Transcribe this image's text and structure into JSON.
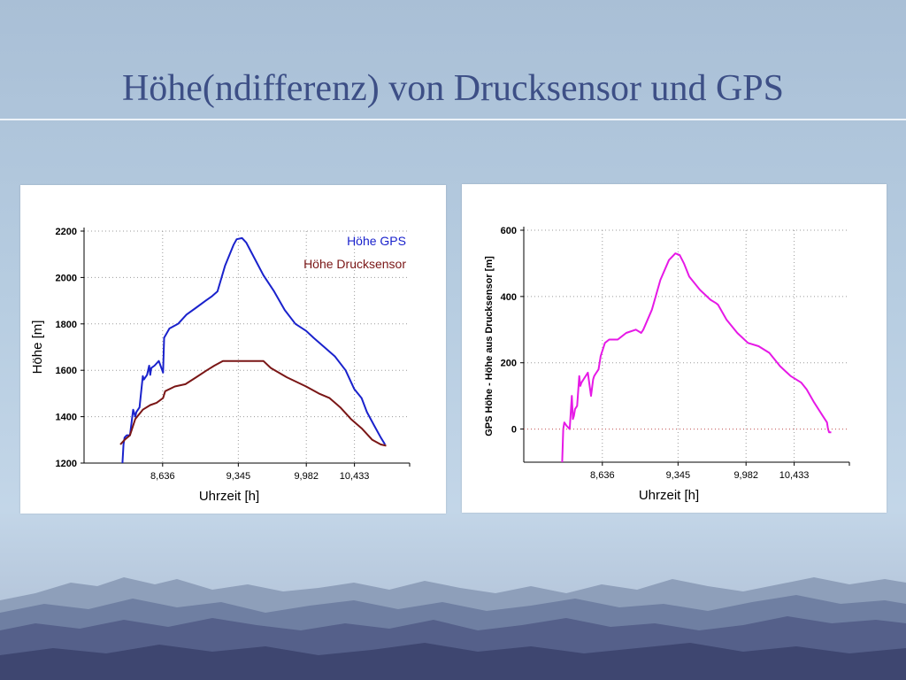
{
  "slide": {
    "title": "Höhe(ndifferenz) von Drucksensor und GPS"
  },
  "colors": {
    "title": "#3d4f86",
    "gps": "#1a22cc",
    "drucksensor": "#7a1616",
    "differenz": "#e619e6"
  },
  "chart_data": [
    {
      "type": "line",
      "xlabel": "Uhrzeit [h]",
      "ylabel": "Höhe [m]",
      "xlim": [
        7.9,
        10.95
      ],
      "ylim": [
        1200,
        2200
      ],
      "xticks": [
        8.636,
        9.345,
        9.982,
        10.433
      ],
      "xtick_labels": [
        "8,636",
        "9,345",
        "9,982",
        "10,433"
      ],
      "yticks": [
        1200,
        1400,
        1600,
        1800,
        2000,
        2200
      ],
      "ytick_labels": [
        "1200",
        "1400",
        "1600",
        "1800",
        "2000",
        "2200"
      ],
      "grid": "dotted",
      "legend": "top-right",
      "series": [
        {
          "name": "Höhe GPS",
          "x": [
            8.26,
            8.27,
            8.28,
            8.3,
            8.33,
            8.36,
            8.38,
            8.39,
            8.42,
            8.45,
            8.46,
            8.49,
            8.5,
            8.51,
            8.52,
            8.53,
            8.56,
            8.6,
            8.64,
            8.65,
            8.7,
            8.78,
            8.86,
            8.95,
            9.04,
            9.1,
            9.15,
            9.22,
            9.3,
            9.33,
            9.38,
            9.42,
            9.5,
            9.58,
            9.68,
            9.78,
            9.88,
            9.98,
            10.05,
            10.15,
            10.25,
            10.35,
            10.43,
            10.5,
            10.55,
            10.62,
            10.68,
            10.72
          ],
          "y": [
            1200,
            1280,
            1310,
            1320,
            1320,
            1430,
            1400,
            1420,
            1440,
            1575,
            1560,
            1580,
            1600,
            1620,
            1580,
            1610,
            1620,
            1640,
            1590,
            1740,
            1780,
            1800,
            1840,
            1870,
            1900,
            1920,
            1940,
            2050,
            2140,
            2165,
            2170,
            2150,
            2080,
            2010,
            1940,
            1860,
            1800,
            1770,
            1740,
            1700,
            1660,
            1600,
            1520,
            1480,
            1420,
            1360,
            1310,
            1280
          ]
        },
        {
          "name": "Höhe Drucksensor",
          "x": [
            8.24,
            8.28,
            8.33,
            8.38,
            8.45,
            8.52,
            8.58,
            8.64,
            8.66,
            8.75,
            8.85,
            8.95,
            9.05,
            9.12,
            9.2,
            9.35,
            9.5,
            9.58,
            9.65,
            9.8,
            9.98,
            10.1,
            10.2,
            10.3,
            10.4,
            10.5,
            10.6,
            10.68,
            10.73
          ],
          "y": [
            1280,
            1300,
            1320,
            1390,
            1430,
            1450,
            1460,
            1480,
            1510,
            1530,
            1540,
            1570,
            1600,
            1620,
            1640,
            1640,
            1640,
            1640,
            1610,
            1570,
            1530,
            1500,
            1480,
            1440,
            1390,
            1350,
            1300,
            1280,
            1275
          ]
        }
      ]
    },
    {
      "type": "line",
      "xlabel": "Uhrzeit [h]",
      "ylabel": "GPS Höhe - Höhe aus Drucksensor [m]",
      "xlim": [
        7.9,
        10.95
      ],
      "ylim": [
        -100,
        600
      ],
      "xticks": [
        8.636,
        9.345,
        9.982,
        10.433
      ],
      "xtick_labels": [
        "8,636",
        "9,345",
        "9,982",
        "10,433"
      ],
      "yticks": [
        0,
        200,
        400,
        600
      ],
      "ytick_labels": [
        "0",
        "200",
        "400",
        "600"
      ],
      "grid": "dotted",
      "series": [
        {
          "x": [
            8.26,
            8.27,
            8.28,
            8.3,
            8.33,
            8.35,
            8.36,
            8.37,
            8.38,
            8.4,
            8.42,
            8.43,
            8.44,
            8.46,
            8.5,
            8.53,
            8.55,
            8.56,
            8.58,
            8.6,
            8.62,
            8.66,
            8.7,
            8.78,
            8.86,
            8.95,
            9.0,
            9.02,
            9.1,
            9.18,
            9.26,
            9.32,
            9.36,
            9.4,
            9.45,
            9.55,
            9.65,
            9.7,
            9.72,
            9.8,
            9.9,
            10.0,
            10.1,
            10.2,
            10.3,
            10.4,
            10.5,
            10.55,
            10.62,
            10.7,
            10.74,
            10.75,
            10.76,
            10.78
          ],
          "y": [
            -100,
            0,
            20,
            10,
            0,
            100,
            30,
            40,
            60,
            70,
            160,
            130,
            140,
            150,
            170,
            100,
            150,
            160,
            170,
            180,
            220,
            260,
            270,
            270,
            290,
            300,
            290,
            300,
            360,
            450,
            510,
            530,
            525,
            500,
            460,
            420,
            390,
            380,
            375,
            330,
            290,
            260,
            250,
            230,
            190,
            160,
            140,
            120,
            80,
            40,
            20,
            0,
            -10,
            -10
          ]
        }
      ]
    }
  ]
}
